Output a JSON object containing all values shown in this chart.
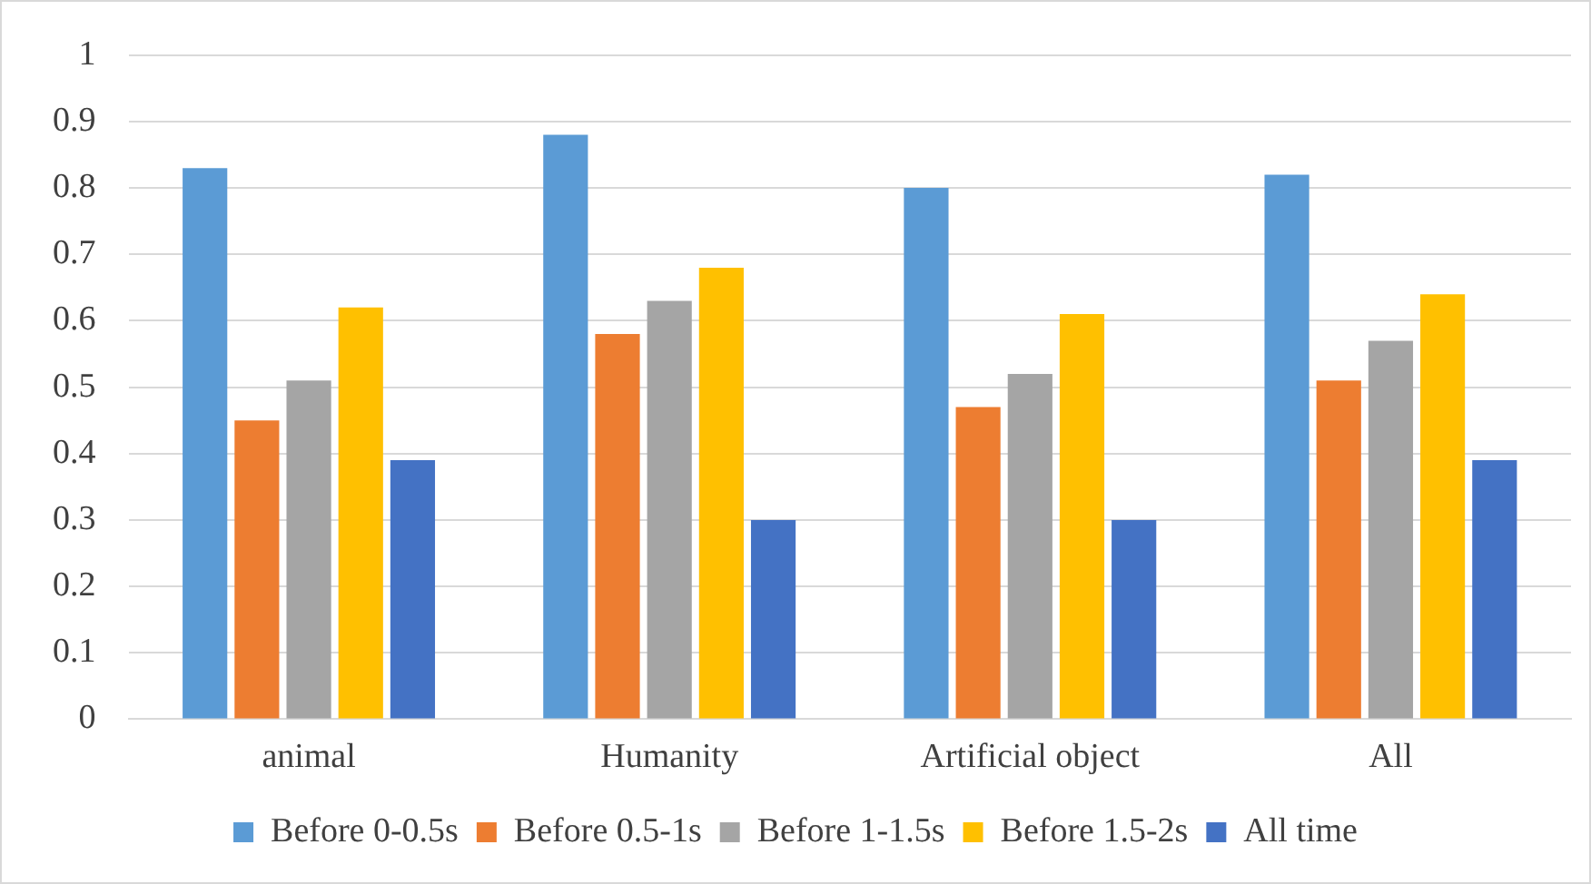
{
  "chart_data": {
    "type": "bar",
    "categories": [
      "animal",
      "Humanity",
      "Artificial object",
      "All"
    ],
    "series": [
      {
        "name": "Before 0-0.5s",
        "color": "#5b9bd5",
        "values": [
          0.83,
          0.88,
          0.8,
          0.82
        ]
      },
      {
        "name": "Before 0.5-1s",
        "color": "#ed7d31",
        "values": [
          0.45,
          0.58,
          0.47,
          0.51
        ]
      },
      {
        "name": "Before 1-1.5s",
        "color": "#a5a5a5",
        "values": [
          0.51,
          0.63,
          0.52,
          0.57
        ]
      },
      {
        "name": "Before 1.5-2s",
        "color": "#ffc000",
        "values": [
          0.62,
          0.68,
          0.61,
          0.64
        ]
      },
      {
        "name": "All time",
        "color": "#4472c4",
        "values": [
          0.39,
          0.3,
          0.3,
          0.39
        ]
      }
    ],
    "ylim": [
      0,
      1
    ],
    "yticks": [
      0,
      0.1,
      0.2,
      0.3,
      0.4,
      0.5,
      0.6,
      0.7,
      0.8,
      0.9,
      1
    ],
    "grid": "y",
    "legend": "bottom"
  }
}
